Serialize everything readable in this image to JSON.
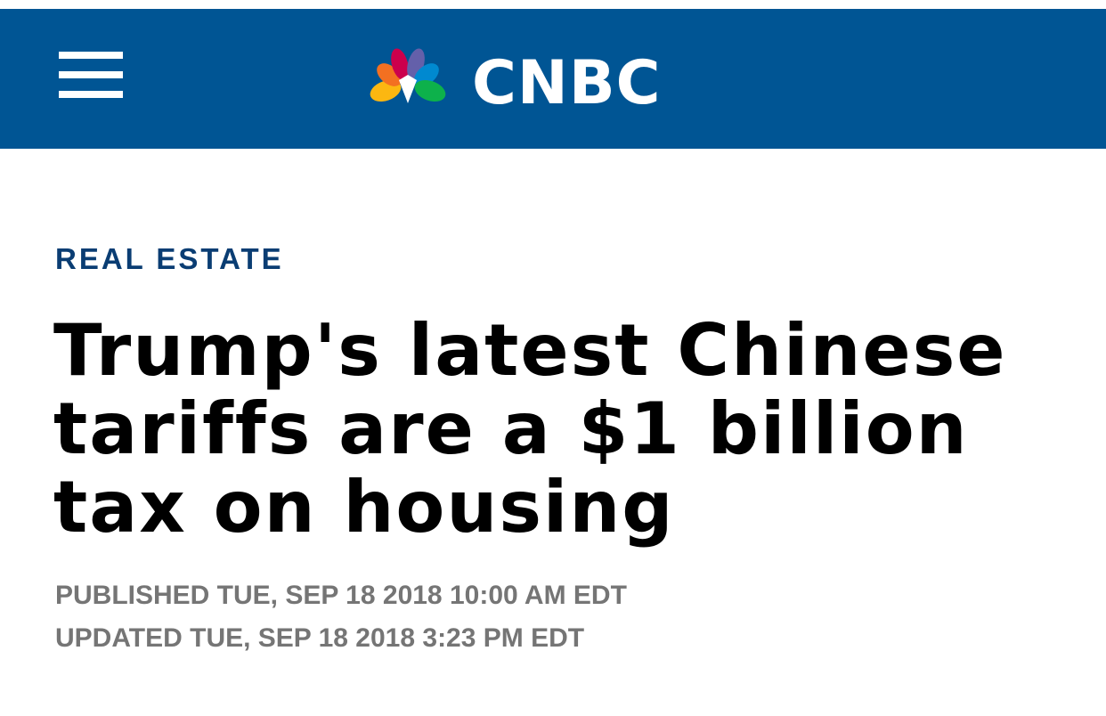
{
  "header": {
    "logo": "CNBC"
  },
  "article": {
    "section": "REAL ESTATE",
    "headline": "Trump's latest Chinese tariffs are a $1 billion tax on housing",
    "published": "PUBLISHED TUE, SEP 18 2018 10:00 AM EDT",
    "updated": "UPDATED TUE, SEP 18 2018 3:23 PM EDT"
  }
}
